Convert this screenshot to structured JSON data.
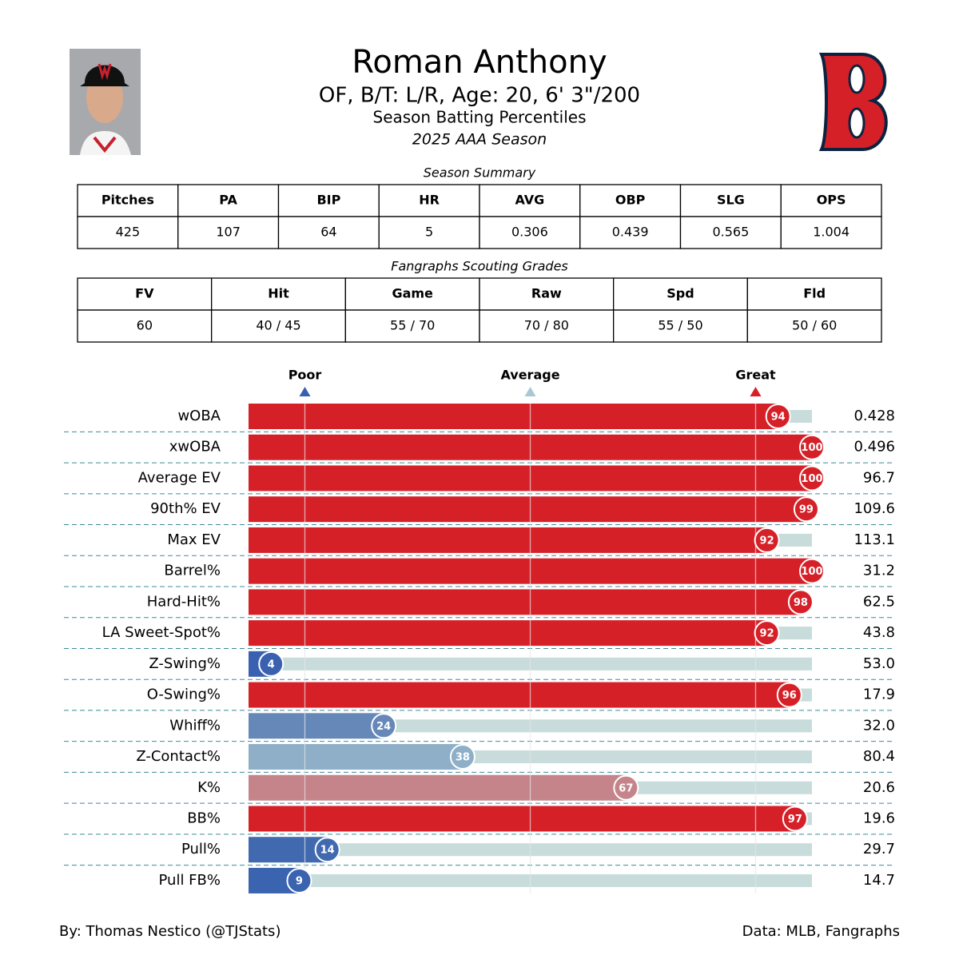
{
  "header": {
    "name": "Roman Anthony",
    "info": "OF, B/T: L/R, Age: 20, 6' 3\"/200",
    "subtitle": "Season Batting Percentiles",
    "season": "2025 AAA Season"
  },
  "summary": {
    "title": "Season Summary",
    "headers": [
      "Pitches",
      "PA",
      "BIP",
      "HR",
      "AVG",
      "OBP",
      "SLG",
      "OPS"
    ],
    "rows": [
      [
        "425",
        "107",
        "64",
        "5",
        "0.306",
        "0.439",
        "0.565",
        "1.004"
      ]
    ]
  },
  "grades": {
    "title": "Fangraphs Scouting Grades",
    "headers": [
      "FV",
      "Hit",
      "Game",
      "Raw",
      "Spd",
      "Fld"
    ],
    "rows": [
      [
        "60",
        "40 / 45",
        "55 / 70",
        "70 / 80",
        "55 / 50",
        "50 / 60"
      ]
    ]
  },
  "chart_data": {
    "type": "bar",
    "orientation": "horizontal",
    "categories": [
      "wOBA",
      "xwOBA",
      "Average EV",
      "90th% EV",
      "Max EV",
      "Barrel%",
      "Hard-Hit%",
      "LA Sweet-Spot%",
      "Z-Swing%",
      "O-Swing%",
      "Whiff%",
      "Z-Contact%",
      "K%",
      "BB%",
      "Pull%",
      "Pull FB%"
    ],
    "values": [
      94,
      100,
      100,
      99,
      92,
      100,
      98,
      92,
      4,
      96,
      24,
      38,
      67,
      97,
      14,
      9
    ],
    "colors": [
      "#d62028",
      "#d62028",
      "#d62028",
      "#d62028",
      "#d62028",
      "#d62028",
      "#d62028",
      "#d62028",
      "#3a61b0",
      "#d62028",
      "#6688b9",
      "#8eafc7",
      "#c4848a",
      "#d62028",
      "#4169b0",
      "#3a63b0"
    ],
    "stat_values": [
      "0.428",
      "0.496",
      "96.7",
      "109.6",
      "113.1",
      "31.2",
      "62.5",
      "43.8",
      "53.0",
      "17.9",
      "32.0",
      "80.4",
      "20.6",
      "19.6",
      "29.7",
      "14.7"
    ],
    "xlim": [
      0,
      100
    ],
    "xticks": [
      {
        "value": 10,
        "label": "Poor"
      },
      {
        "value": 50,
        "label": "Average"
      },
      {
        "value": 90,
        "label": "Great"
      }
    ],
    "xtick_colors": [
      "#3a5fb0",
      "#a9c8d4",
      "#d62028"
    ],
    "track_color": "#c8dcdc"
  },
  "footer": {
    "credit": "By: Thomas Nestico (@TJStats)",
    "source": "Data: MLB, Fangraphs"
  }
}
